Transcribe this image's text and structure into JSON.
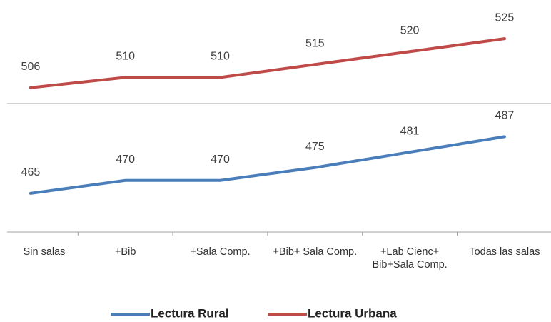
{
  "chart_data": {
    "type": "line",
    "categories": [
      "Sin salas",
      "+Bib",
      "+Sala Comp.",
      "+Bib+ Sala Comp.",
      "+Lab Cienc+ Bib+Sala Comp.",
      "Todas las salas"
    ],
    "series": [
      {
        "name": "Lectura Rural",
        "color": "#4a7ebb",
        "values": [
          465,
          470,
          470,
          475,
          481,
          487
        ]
      },
      {
        "name": "Lectura Urbana",
        "color": "#be4b48",
        "values": [
          506,
          510,
          510,
          515,
          520,
          525
        ]
      }
    ],
    "ylim": [
      450,
      540
    ],
    "gridlines": [
      500
    ],
    "legend": "bottom"
  }
}
